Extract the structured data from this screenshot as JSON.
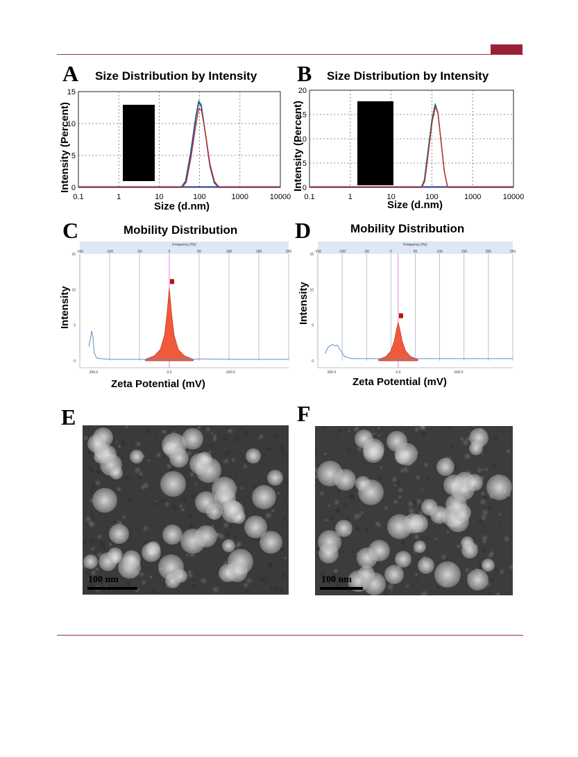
{
  "panels": {
    "A": {
      "letter": "A",
      "title": "Size Distribution by Intensity",
      "ylabel": "Intensity (Percent)",
      "xlabel": "Size (d.nm)"
    },
    "B": {
      "letter": "B",
      "title": "Size Distribution by Intensity",
      "ylabel": "Intensity (Percent)",
      "xlabel": "Size (d.nm)"
    },
    "C": {
      "letter": "C",
      "title": "Mobility Distribution",
      "ylabel": "Intensity",
      "xlabel": "Zeta Potential (mV)",
      "top_axis_label": "Frequency (Hz)"
    },
    "D": {
      "letter": "D",
      "title": "Mobility Distribution",
      "ylabel": "Intensity",
      "xlabel": "Zeta Potential (mV)",
      "top_axis_label": "Frequency (Hz)"
    },
    "E": {
      "letter": "E",
      "scale_label": "100 nm"
    },
    "F": {
      "letter": "F",
      "scale_label": "100 nm"
    }
  },
  "colors": {
    "accent": "#9a2035",
    "rule": "#9a3350",
    "peak_fill": "#f05a3c",
    "baseline": "#3a4fd0"
  },
  "chart_data": [
    {
      "type": "line",
      "panel": "A",
      "title": "Size Distribution by Intensity",
      "xlabel": "Size (d.nm)",
      "ylabel": "Intensity (Percent)",
      "xscale": "log",
      "xlim": [
        0.1,
        10000
      ],
      "ylim": [
        0,
        15
      ],
      "xticks": [
        "0.1",
        "1",
        "10",
        "100",
        "1000",
        "10000"
      ],
      "yticks": [
        "0",
        "5",
        "10",
        "15"
      ],
      "grid": true,
      "series": [
        {
          "color": "#1aa36b",
          "x": [
            0.1,
            35,
            45,
            60,
            80,
            95,
            110,
            140,
            180,
            230,
            300,
            10000
          ],
          "y": [
            0,
            0,
            1,
            5.5,
            11,
            13.6,
            13,
            8.5,
            3.5,
            0.8,
            0,
            0
          ]
        },
        {
          "color": "#2a3aa8",
          "x": [
            0.1,
            35,
            45,
            60,
            80,
            95,
            110,
            140,
            180,
            230,
            300,
            10000
          ],
          "y": [
            0,
            0,
            0.9,
            5.2,
            10.7,
            13.3,
            12.7,
            8.3,
            3.3,
            0.7,
            0,
            0
          ]
        },
        {
          "color": "#c0392b",
          "x": [
            0.1,
            37,
            47,
            62,
            82,
            97,
            112,
            142,
            182,
            235,
            310,
            10000
          ],
          "y": [
            0,
            0,
            0.8,
            4.8,
            10,
            12.4,
            12,
            8.2,
            3.6,
            0.9,
            0,
            0
          ]
        }
      ]
    },
    {
      "type": "line",
      "panel": "B",
      "title": "Size Distribution by Intensity",
      "xlabel": "Size (d.nm)",
      "ylabel": "Intensity (Percent)",
      "xscale": "log",
      "xlim": [
        0.1,
        10000
      ],
      "ylim": [
        0,
        20
      ],
      "xticks": [
        "0.1",
        "1",
        "10",
        "100",
        "1000",
        "10000"
      ],
      "yticks": [
        "0",
        "5",
        "10",
        "15",
        "20"
      ],
      "grid": true,
      "series": [
        {
          "color": "#1aa36b",
          "x": [
            0.1,
            55,
            65,
            80,
            100,
            120,
            140,
            165,
            200,
            240,
            10000
          ],
          "y": [
            0,
            0,
            1.5,
            7.5,
            14,
            17.2,
            15.5,
            10,
            3.5,
            0,
            0
          ]
        },
        {
          "color": "#2a3aa8",
          "x": [
            0.1,
            56,
            66,
            81,
            101,
            121,
            141,
            166,
            201,
            242,
            10000
          ],
          "y": [
            0,
            0,
            1.4,
            7.2,
            13.7,
            16.9,
            15.3,
            9.8,
            3.4,
            0,
            0
          ]
        },
        {
          "color": "#c0392b",
          "x": [
            0.1,
            57,
            67,
            82,
            102,
            122,
            142,
            167,
            202,
            244,
            10000
          ],
          "y": [
            0,
            0,
            1.3,
            7,
            13.5,
            16.6,
            15.1,
            9.6,
            3.3,
            0,
            0
          ]
        }
      ]
    },
    {
      "type": "area",
      "panel": "C",
      "title": "Mobility Distribution",
      "xlabel": "Zeta Potential (mV)",
      "ylabel": "Intensity",
      "top_xticks": [
        "-150",
        "-100",
        "-50",
        "0",
        "50",
        "100",
        "150",
        "200"
      ],
      "bottom_xticks": [
        "200.0",
        "0.0",
        "-200.0"
      ],
      "yticks": [
        "0",
        "5",
        "10",
        "15"
      ],
      "xlim": [
        -150,
        200
      ],
      "ylim": [
        0,
        15
      ],
      "peak_center": 0,
      "peak_height": 10.2,
      "peak_x": [
        -40,
        -25,
        -15,
        -8,
        -4,
        0,
        4,
        8,
        15,
        25,
        40
      ],
      "peak_y": [
        0.2,
        0.7,
        1.6,
        3.6,
        6.5,
        10.2,
        6.5,
        3.6,
        1.6,
        0.7,
        0.2
      ],
      "trace_x": [
        -135,
        -132,
        -130,
        -128,
        -126,
        -122,
        -115,
        -100,
        -60,
        0,
        60,
        120,
        180,
        200
      ],
      "trace_y": [
        2.0,
        3.2,
        4.2,
        3.4,
        1.2,
        0.4,
        0.3,
        0.2,
        0.2,
        0.2,
        0.25,
        0.2,
        0.2,
        0.2
      ]
    },
    {
      "type": "area",
      "panel": "D",
      "title": "Mobility Distribution",
      "xlabel": "Zeta Potential (mV)",
      "ylabel": "Intensity",
      "top_xticks": [
        "-150",
        "-100",
        "-50",
        "0",
        "50",
        "100",
        "150",
        "200",
        "250"
      ],
      "bottom_xticks": [
        "200.0",
        "0.0",
        "-200.0"
      ],
      "yticks": [
        "0",
        "5",
        "10",
        "15"
      ],
      "xlim": [
        -150,
        250
      ],
      "ylim": [
        0,
        15
      ],
      "peak_center": 15,
      "peak_height": 5.4,
      "peak_x": [
        -25,
        -10,
        0,
        7,
        11,
        15,
        19,
        23,
        30,
        40,
        55
      ],
      "peak_y": [
        0.2,
        0.6,
        1.4,
        2.8,
        4.2,
        5.4,
        4.2,
        2.8,
        1.4,
        0.6,
        0.2
      ],
      "trace_x": [
        -135,
        -130,
        -125,
        -120,
        -115,
        -110,
        -105,
        -95,
        -80,
        -40,
        0,
        80,
        160,
        250
      ],
      "trace_y": [
        1.0,
        1.8,
        2.1,
        2.3,
        2.1,
        2.2,
        1.6,
        0.6,
        0.3,
        0.3,
        0.3,
        0.3,
        0.3,
        0.3
      ]
    }
  ]
}
